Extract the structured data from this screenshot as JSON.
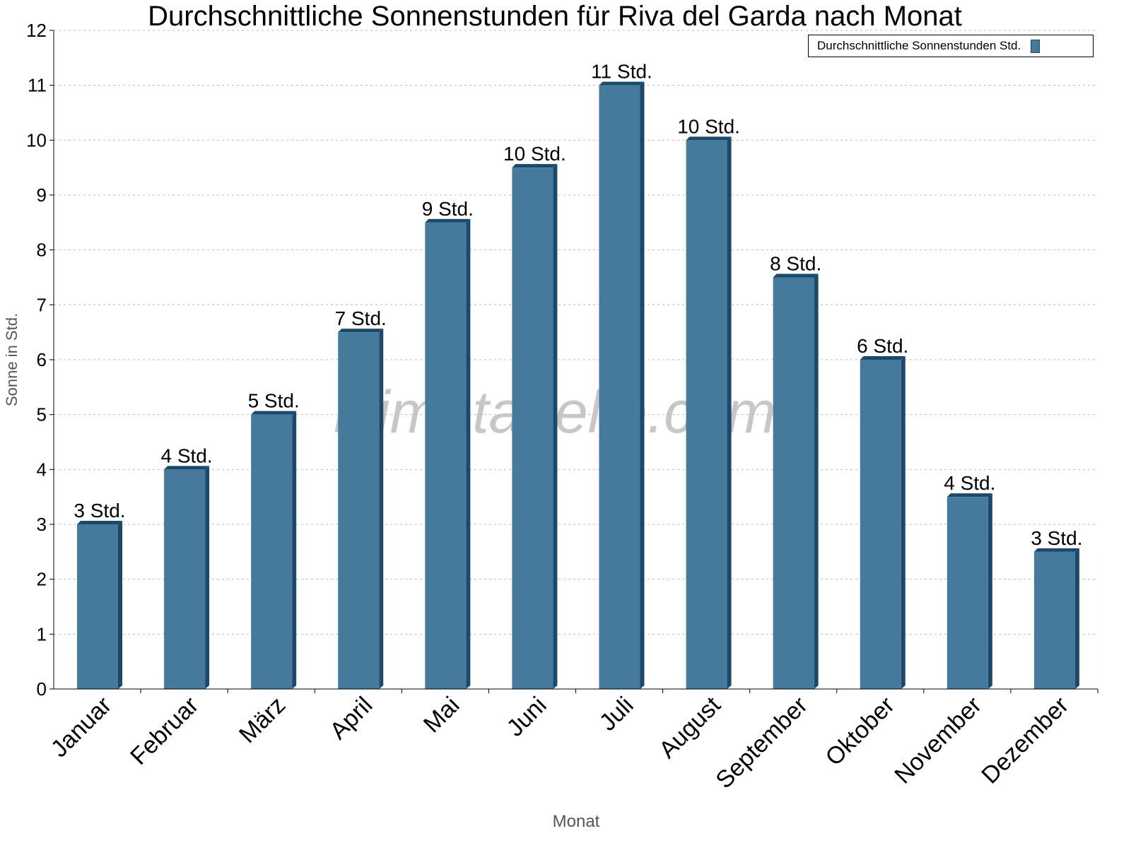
{
  "chart_data": {
    "type": "bar",
    "title": "Durchschnittliche Sonnenstunden für Riva del Garda nach Monat",
    "xlabel": "Monat",
    "ylabel": "Sonne in Std.",
    "ylim": [
      0,
      12
    ],
    "yticks": [
      "0",
      "1",
      "2",
      "3",
      "4",
      "5",
      "6",
      "7",
      "8",
      "9",
      "10",
      "11",
      "12"
    ],
    "grid": true,
    "legend_position": "top-right",
    "categories": [
      "Januar",
      "Februar",
      "März",
      "April",
      "Mai",
      "Juni",
      "Juli",
      "August",
      "September",
      "Oktober",
      "November",
      "Dezember"
    ],
    "series": [
      {
        "name": "Durchschnittliche Sonnenstunden Std.",
        "values": [
          3,
          4,
          5,
          6.5,
          8.5,
          9.5,
          11,
          10,
          7.5,
          6,
          3.5,
          2.5
        ],
        "data_labels": [
          "3 Std.",
          "4 Std.",
          "5 Std.",
          "7 Std.",
          "9 Std.",
          "10 Std.",
          "11 Std.",
          "10 Std.",
          "8 Std.",
          "6 Std.",
          "4 Std.",
          "3 Std."
        ],
        "color": "#467a9c",
        "edge_color": "#1a4a6b"
      }
    ],
    "watermark": "klimatabelle.com"
  }
}
